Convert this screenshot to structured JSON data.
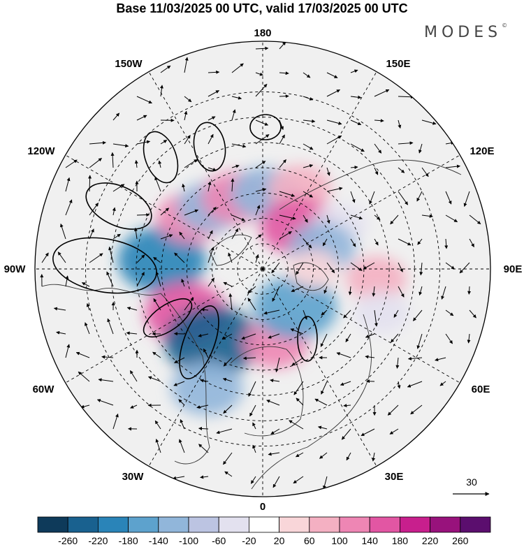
{
  "title": "Base 11/03/2025 00 UTC, valid 17/03/2025 00 UTC",
  "brand": "MODES",
  "brand_mark": "©",
  "longitude_labels": {
    "top": "180",
    "upper_left": "150W",
    "upper_right": "150E",
    "left_upper": "120W",
    "right_upper": "120E",
    "left": "90W",
    "right": "90E",
    "left_lower": "60W",
    "right_lower": "60E",
    "lower_left": "30W",
    "lower_right": "30E",
    "bottom": "0"
  },
  "vector_scale": {
    "label": "30"
  },
  "colorbar": {
    "ticks": [
      "-260",
      "-220",
      "-180",
      "-140",
      "-100",
      "-60",
      "-20",
      "20",
      "60",
      "100",
      "140",
      "180",
      "220",
      "260"
    ],
    "colors": [
      "#0e3a5a",
      "#19618f",
      "#2a84b8",
      "#5da2cd",
      "#91b6da",
      "#bcc4e2",
      "#e3e1ef",
      "#ffffff",
      "#f9d6d9",
      "#f4b0c2",
      "#ee86b4",
      "#e256a3",
      "#c81f8d",
      "#98127c",
      "#5b0e6e"
    ]
  },
  "map_colors": {
    "ocean_bg": "#f0f0f0",
    "grid": "#000000"
  },
  "anomalies": [
    {
      "lon": -95,
      "lat": 50,
      "value": -200
    },
    {
      "lon": -60,
      "lat": 55,
      "value": 175
    },
    {
      "lon": -35,
      "lat": 55,
      "value": -230
    },
    {
      "lon": -25,
      "lat": 38,
      "value": -130
    },
    {
      "lon": 10,
      "lat": 60,
      "value": 100
    },
    {
      "lon": 40,
      "lat": 70,
      "value": -180
    },
    {
      "lon": -125,
      "lat": 55,
      "value": 110
    },
    {
      "lon": -140,
      "lat": 58,
      "value": -110
    },
    {
      "lon": -160,
      "lat": 60,
      "value": 120
    },
    {
      "lon": 178,
      "lat": 60,
      "value": -120
    },
    {
      "lon": 155,
      "lat": 55,
      "value": 90
    },
    {
      "lon": 140,
      "lat": 68,
      "value": 150
    },
    {
      "lon": 120,
      "lat": 55,
      "value": -60
    },
    {
      "lon": 110,
      "lat": 65,
      "value": -110
    },
    {
      "lon": 85,
      "lat": 45,
      "value": 80
    },
    {
      "lon": 70,
      "lat": 40,
      "value": -60
    },
    {
      "lon": 90,
      "lat": 70,
      "value": 40
    }
  ]
}
